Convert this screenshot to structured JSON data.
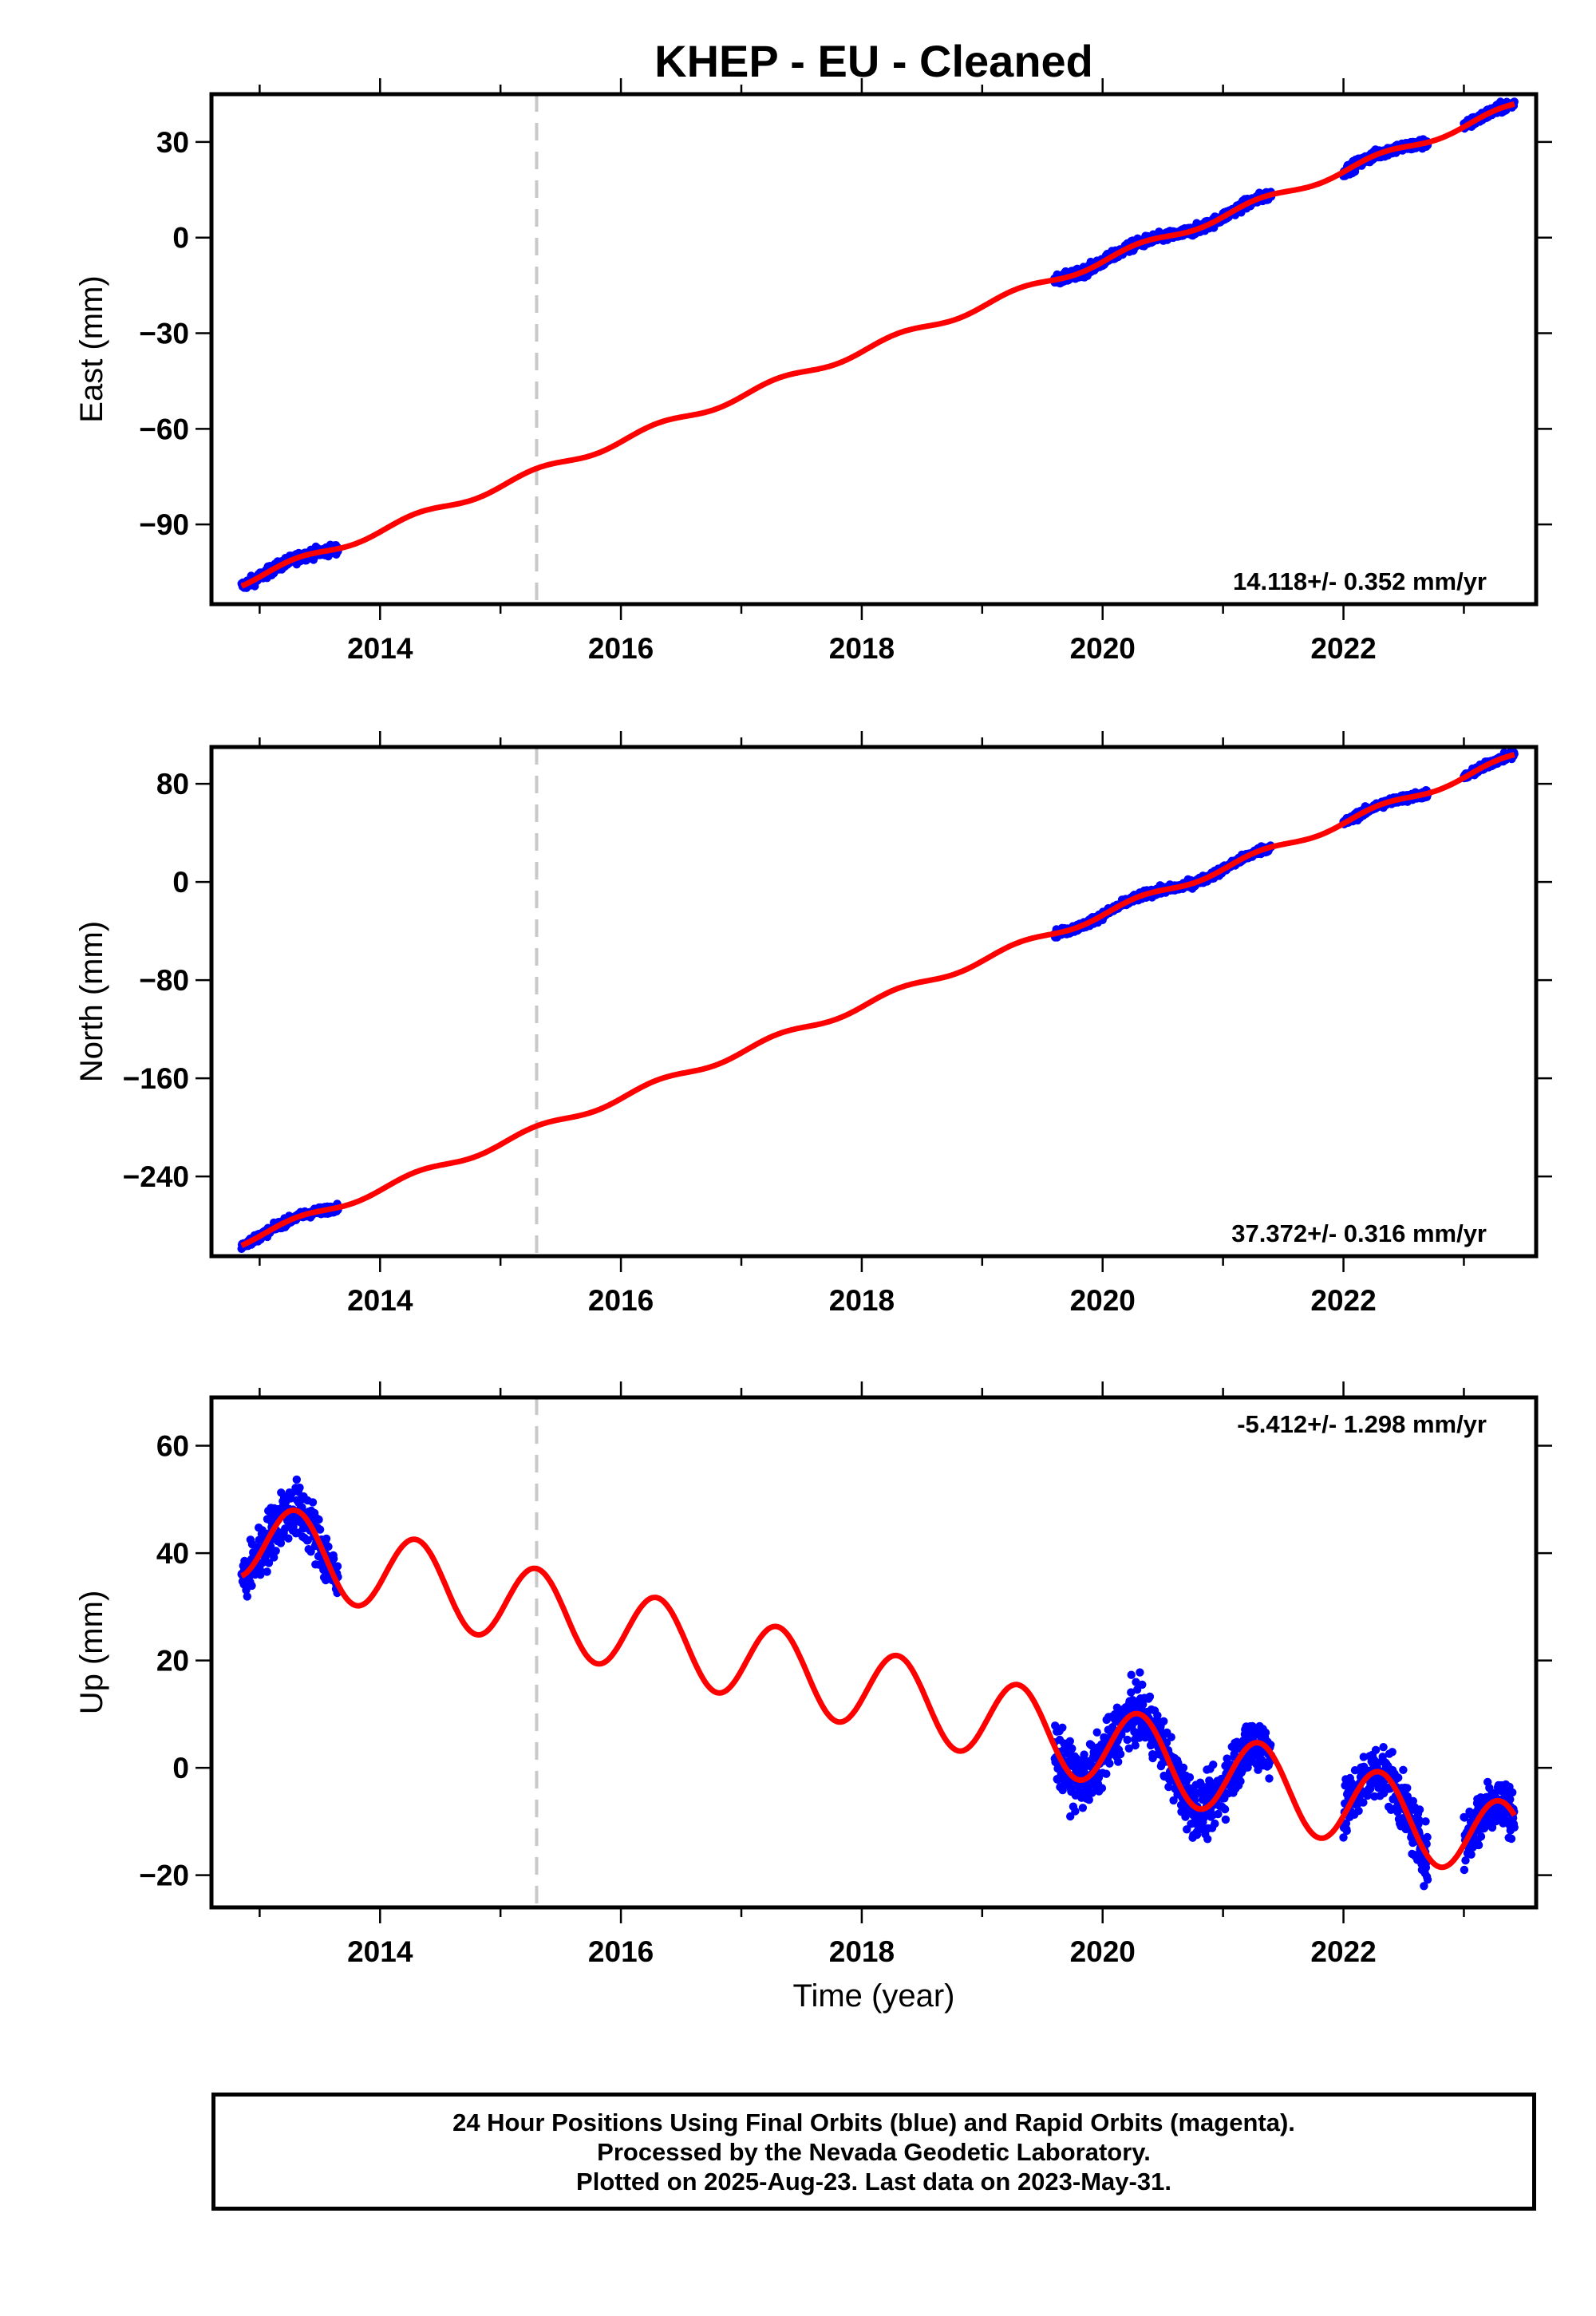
{
  "title": "KHEP  - EU - Cleaned",
  "colors": {
    "final_orbits": "#0000ff",
    "fit_line": "#ff0000",
    "gap_marker": "#c8c8c8"
  },
  "footer": {
    "line1": "24 Hour Positions Using Final Orbits (blue) and Rapid Orbits (magenta).",
    "line2": "Processed by the Nevada Geodetic Laboratory.",
    "line3": "Plotted on 2025-Aug-23. Last data on 2023-May-31."
  },
  "chart_data": [
    {
      "type": "scatter",
      "ylabel": "East (mm)",
      "xlabel": "",
      "xlim": [
        2012.6,
        2023.6
      ],
      "ylim": [
        -115,
        45
      ],
      "x_ticks": [
        "2014",
        "2016",
        "2018",
        "2020",
        "2022"
      ],
      "y_ticks": [
        "30",
        "0",
        "−30",
        "−60",
        "−90"
      ],
      "rate_label": "14.118+/- 0.352 mm/yr",
      "rate_position": "bottom-right",
      "gap_marker_x": 2015.3,
      "data_segments": [
        [
          2012.85,
          2013.65
        ],
        [
          2019.6,
          2021.4
        ],
        [
          2022.0,
          2022.7
        ],
        [
          2023.0,
          2023.42
        ]
      ],
      "series": [
        {
          "kind": "fit",
          "trend_per_year": 14.118,
          "value_at_2018": -35.5,
          "annual_amplitude": 1.2
        },
        {
          "kind": "points",
          "scatter_mm": 1.5
        }
      ]
    },
    {
      "type": "scatter",
      "ylabel": "North (mm)",
      "xlabel": "",
      "xlim": [
        2012.6,
        2023.6
      ],
      "ylim": [
        -305,
        110
      ],
      "x_ticks": [
        "2014",
        "2016",
        "2018",
        "2020",
        "2022"
      ],
      "y_ticks": [
        "80",
        "0",
        "−80",
        "−160",
        "−240"
      ],
      "rate_label": "37.372+/- 0.316 mm/yr",
      "rate_position": "bottom-right",
      "gap_marker_x": 2015.3,
      "data_segments": [
        [
          2012.85,
          2013.65
        ],
        [
          2019.6,
          2021.4
        ],
        [
          2022.0,
          2022.7
        ],
        [
          2023.0,
          2023.42
        ]
      ],
      "series": [
        {
          "kind": "fit",
          "trend_per_year": 37.372,
          "value_at_2018": -101,
          "annual_amplitude": 3
        },
        {
          "kind": "points",
          "scatter_mm": 3
        }
      ]
    },
    {
      "type": "scatter",
      "ylabel": "Up (mm)",
      "xlabel": "Time (year)",
      "xlim": [
        2012.6,
        2023.6
      ],
      "ylim": [
        -26,
        69
      ],
      "x_ticks": [
        "2014",
        "2016",
        "2018",
        "2020",
        "2022"
      ],
      "y_ticks": [
        "60",
        "40",
        "20",
        "0",
        "−20"
      ],
      "rate_label": "-5.412+/- 1.298 mm/yr",
      "rate_position": "top-right",
      "gap_marker_x": 2015.3,
      "data_segments": [
        [
          2012.85,
          2013.65
        ],
        [
          2019.6,
          2021.4
        ],
        [
          2022.0,
          2022.7
        ],
        [
          2023.0,
          2023.42
        ]
      ],
      "series": [
        {
          "kind": "fit",
          "trend_per_year": -5.412,
          "value_at_2018": 15,
          "annual_amplitude": 7.5,
          "annual_peak_fraction": 0.3
        },
        {
          "kind": "points",
          "scatter_mm": 5
        }
      ]
    }
  ]
}
